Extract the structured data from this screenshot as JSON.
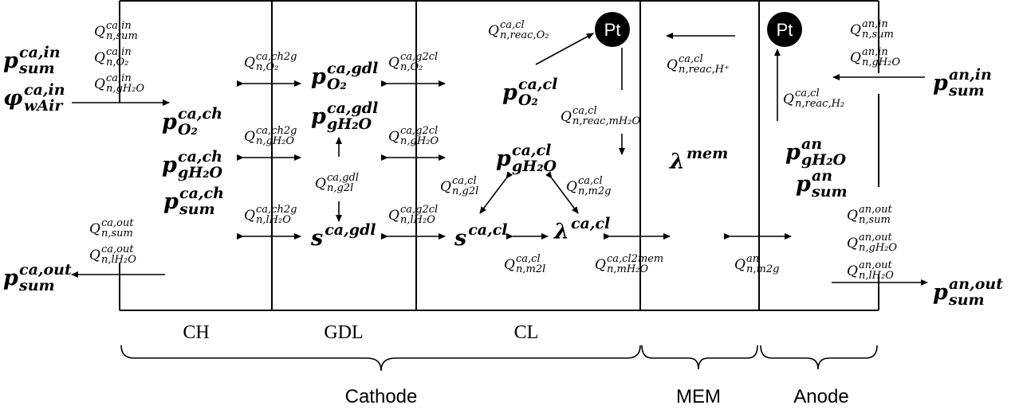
{
  "regions": {
    "ch": "CH",
    "gdl": "GDL",
    "cl": "CL"
  },
  "groups": {
    "cathode": "Cathode",
    "mem": "MEM",
    "anode": "Anode"
  },
  "catalyst": {
    "cathode_pt": "Pt",
    "anode_pt": "Pt"
  },
  "state_vars": [
    {
      "id": "p-sum-ca-in",
      "base": "p",
      "sup": "ca,in",
      "sub": "sum"
    },
    {
      "id": "phi-wair-ca-in",
      "base": "φ",
      "sup": "ca,in",
      "sub": "wAir"
    },
    {
      "id": "p-sum-ca-out",
      "base": "p",
      "sup": "ca,out",
      "sub": "sum"
    },
    {
      "id": "p-o2-ca-ch",
      "base": "p",
      "sup": "ca,ch",
      "sub": "O₂"
    },
    {
      "id": "p-gh2o-ca-ch",
      "base": "p",
      "sup": "ca,ch",
      "sub": "gH₂O"
    },
    {
      "id": "p-sum-ca-ch",
      "base": "p",
      "sup": "ca,ch",
      "sub": "sum"
    },
    {
      "id": "p-o2-ca-gdl",
      "base": "p",
      "sup": "ca,gdl",
      "sub": "O₂"
    },
    {
      "id": "p-gh2o-ca-gdl",
      "base": "p",
      "sup": "ca,gdl",
      "sub": "gH₂O"
    },
    {
      "id": "s-ca-gdl",
      "base": "s",
      "sup": "ca,gdl",
      "sub": ""
    },
    {
      "id": "p-o2-ca-cl",
      "base": "p",
      "sup": "ca,cl",
      "sub": "O₂"
    },
    {
      "id": "p-gh2o-ca-cl",
      "base": "p",
      "sup": "ca,cl",
      "sub": "gH₂O"
    },
    {
      "id": "s-ca-cl",
      "base": "s",
      "sup": "ca,cl",
      "sub": ""
    },
    {
      "id": "lambda-ca-cl",
      "base": "λ",
      "sup": "ca,cl",
      "sub": ""
    },
    {
      "id": "lambda-mem",
      "base": "λ",
      "sup": "mem",
      "sub": ""
    },
    {
      "id": "p-gh2o-an",
      "base": "p",
      "sup": "an",
      "sub": "gH₂O"
    },
    {
      "id": "p-sum-an",
      "base": "p",
      "sup": "an",
      "sub": "sum"
    },
    {
      "id": "p-sum-an-in",
      "base": "p",
      "sup": "an,in",
      "sub": "sum"
    },
    {
      "id": "p-sum-an-out",
      "base": "p",
      "sup": "an,out",
      "sub": "sum"
    }
  ],
  "flows": [
    {
      "id": "q-sum-ca-in",
      "sup": "ca,in",
      "sub": "n,sum"
    },
    {
      "id": "q-o2-ca-in",
      "sup": "ca,in",
      "sub": "n,O₂"
    },
    {
      "id": "q-gh2o-ca-in",
      "sup": "ca,in",
      "sub": "n,gH₂O"
    },
    {
      "id": "q-sum-ca-out",
      "sup": "ca,out",
      "sub": "n,sum"
    },
    {
      "id": "q-lh2o-ca-out",
      "sup": "ca,out",
      "sub": "n,lH₂O"
    },
    {
      "id": "q-o2-ch2g",
      "sup": "ca,ch2g",
      "sub": "n,O₂"
    },
    {
      "id": "q-gh2o-ch2g",
      "sup": "ca,ch2g",
      "sub": "n,gH₂O"
    },
    {
      "id": "q-lh2o-ch2g",
      "sup": "ca,ch2g",
      "sub": "n,lH₂O"
    },
    {
      "id": "q-g2l-gdl",
      "sup": "ca,gdl",
      "sub": "n,g2l"
    },
    {
      "id": "q-o2-g2cl",
      "sup": "ca,g2cl",
      "sub": "n,O₂"
    },
    {
      "id": "q-gh2o-g2cl",
      "sup": "ca,g2cl",
      "sub": "n,gH₂O"
    },
    {
      "id": "q-lh2o-g2cl",
      "sup": "ca,g2cl",
      "sub": "n,lH₂O"
    },
    {
      "id": "q-reac-o2",
      "sup": "ca,cl",
      "sub": "n,reac,O₂"
    },
    {
      "id": "q-reac-mh2o",
      "sup": "ca,cl",
      "sub": "n,reac,mH₂O"
    },
    {
      "id": "q-g2l-cl",
      "sup": "ca,cl",
      "sub": "n,g2l"
    },
    {
      "id": "q-m2g-cl",
      "sup": "ca,cl",
      "sub": "n,m2g"
    },
    {
      "id": "q-m2l-cl",
      "sup": "ca,cl",
      "sub": "n,m2l"
    },
    {
      "id": "q-cl2mem",
      "sup": "ca,cl2mem",
      "sub": "n,mH₂O"
    },
    {
      "id": "q-reac-hplus",
      "sup": "ca,cl",
      "sub": "n,reac,H⁺"
    },
    {
      "id": "q-reac-h2",
      "sup": "ca,cl",
      "sub": "n,reac,H₂"
    },
    {
      "id": "q-m2g-an",
      "sup": "an",
      "sub": "n,m2g"
    },
    {
      "id": "q-sum-an-in",
      "sup": "an,in",
      "sub": "n,sum"
    },
    {
      "id": "q-gh2o-an-in",
      "sup": "an,in",
      "sub": "n,gH₂O"
    },
    {
      "id": "q-sum-an-out",
      "sup": "an,out",
      "sub": "n,sum"
    },
    {
      "id": "q-gh2o-an-out",
      "sup": "an,out",
      "sub": "n,gH₂O"
    },
    {
      "id": "q-lh2o-an-out",
      "sup": "an,out",
      "sub": "n,lH₂O"
    }
  ]
}
